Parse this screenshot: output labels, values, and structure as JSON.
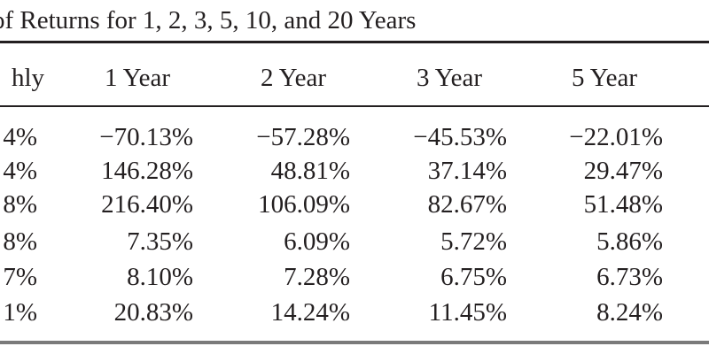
{
  "caption": "of Returns for 1, 2, 3, 5, 10, and 20 Years",
  "table": {
    "headers": [
      "hly",
      "1 Year",
      "2 Year",
      "3 Year",
      "5 Year",
      ""
    ],
    "rows": [
      [
        "4%",
        "−70.13%",
        "−57.28%",
        "−45.53%",
        "−22.01%",
        "−"
      ],
      [
        "4%",
        "146.28%",
        "48.81%",
        "37.14%",
        "29.47%",
        ""
      ],
      [
        "8%",
        "216.40%",
        "106.09%",
        "82.67%",
        "51.48%",
        ""
      ],
      [
        "8%",
        "7.35%",
        "6.09%",
        "5.72%",
        "5.86%",
        ""
      ],
      [
        "7%",
        "8.10%",
        "7.28%",
        "6.75%",
        "6.73%",
        ""
      ],
      [
        "1%",
        "20.83%",
        "14.24%",
        "11.45%",
        "8.24%",
        ""
      ]
    ]
  }
}
